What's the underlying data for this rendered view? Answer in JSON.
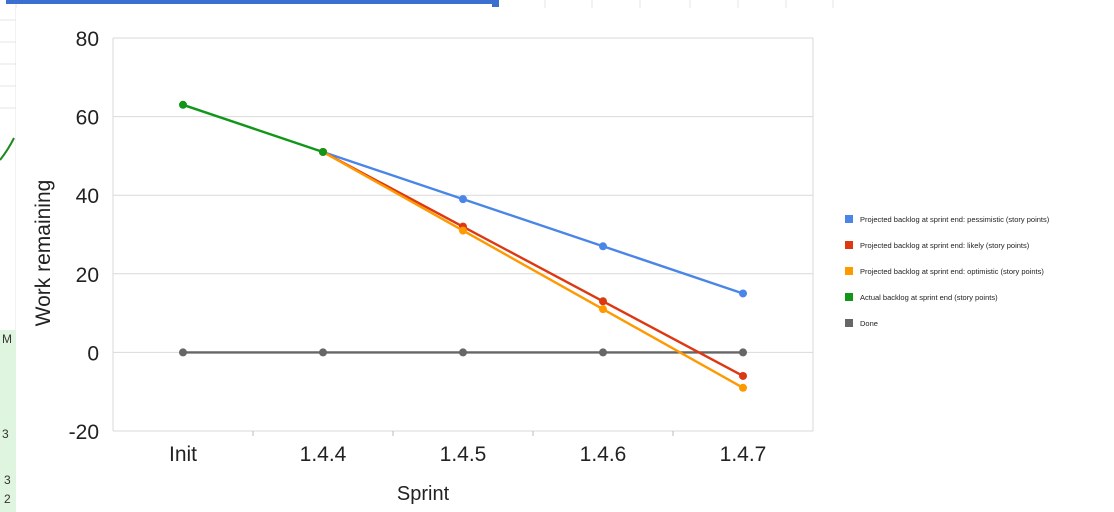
{
  "sheet_fragments": [
    "M",
    "3",
    "3",
    "2"
  ],
  "chart_data": {
    "type": "line",
    "xlabel": "Sprint",
    "ylabel": "Work remaining",
    "categories": [
      "Init",
      "1.4.4",
      "1.4.5",
      "1.4.6",
      "1.4.7"
    ],
    "ylim": [
      -20,
      80
    ],
    "yticks": [
      -20,
      0,
      20,
      40,
      60,
      80
    ],
    "grid": true,
    "legend_position": "right",
    "series": [
      {
        "name": "Projected backlog at sprint end: pessimistic (story points)",
        "color": "#4a86e8",
        "values": [
          null,
          51,
          39,
          27,
          15
        ]
      },
      {
        "name": "Projected backlog at sprint end: likely (story points)",
        "color": "#dc3912",
        "values": [
          null,
          51,
          32,
          13,
          -6
        ]
      },
      {
        "name": "Projected backlog at sprint end: optimistic (story points)",
        "color": "#ff9900",
        "values": [
          null,
          51,
          31,
          11,
          -9
        ]
      },
      {
        "name": "Actual backlog at sprint end (story points)",
        "color": "#109618",
        "values": [
          63,
          51,
          null,
          null,
          null
        ]
      },
      {
        "name": "Done",
        "color": "#666666",
        "values": [
          0,
          0,
          0,
          0,
          0
        ]
      }
    ]
  }
}
